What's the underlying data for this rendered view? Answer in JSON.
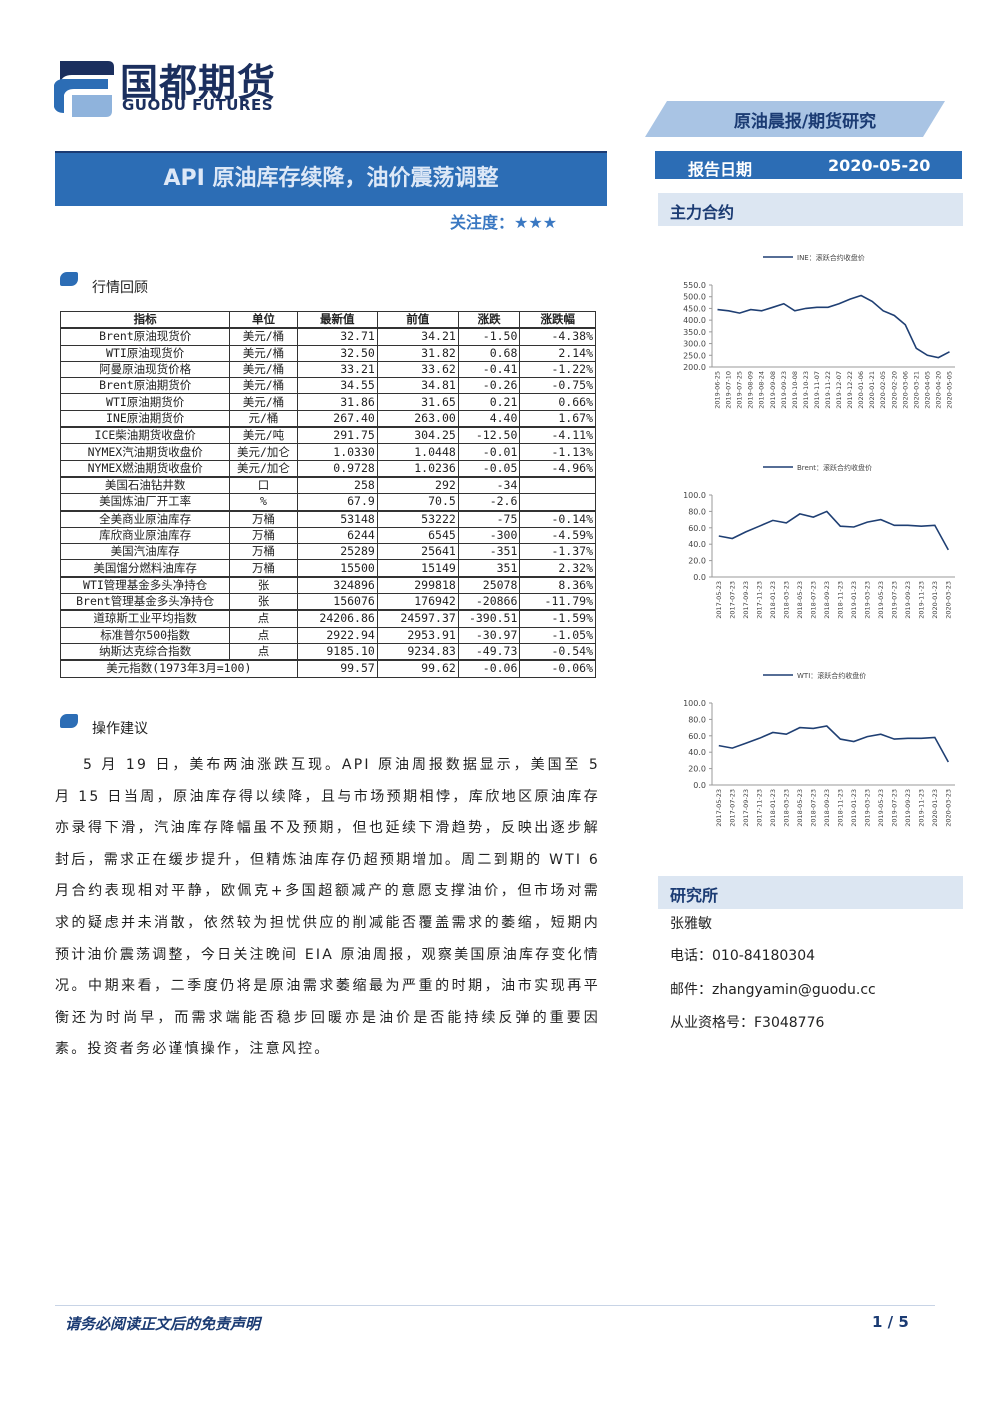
{
  "header": {
    "logo_cn": "国都期货",
    "logo_en": "GUODU FUTURES",
    "category": "原油晨报/期货研究",
    "title": "API 原油库存续降，油价震荡调整",
    "attention": "关注度：★★★",
    "date_label": "报告日期",
    "date": "2020-05-20"
  },
  "sections": {
    "market": "行情回顾",
    "advice": "操作建议",
    "contracts": "主力合约",
    "institute": "研究所"
  },
  "table": {
    "header": [
      "指标",
      "单位",
      "最新值",
      "前值",
      "涨跌",
      "涨跌幅"
    ],
    "groups": [
      [
        [
          "Brent原油现货价",
          "美元/桶",
          "32.71",
          "34.21",
          "-1.50",
          "-4.38%"
        ],
        [
          "WTI原油现货价",
          "美元/桶",
          "32.50",
          "31.82",
          "0.68",
          "2.14%"
        ],
        [
          "阿曼原油现货价格",
          "美元/桶",
          "33.21",
          "33.62",
          "-0.41",
          "-1.22%"
        ],
        [
          "Brent原油期货价",
          "美元/桶",
          "34.55",
          "34.81",
          "-0.26",
          "-0.75%"
        ],
        [
          "WTI原油期货价",
          "美元/桶",
          "31.86",
          "31.65",
          "0.21",
          "0.66%"
        ],
        [
          "INE原油期货价",
          "元/桶",
          "267.40",
          "263.00",
          "4.40",
          "1.67%"
        ]
      ],
      [
        [
          "ICE柴油期货收盘价",
          "美元/吨",
          "291.75",
          "304.25",
          "-12.50",
          "-4.11%"
        ],
        [
          "NYMEX汽油期货收盘价",
          "美元/加仑",
          "1.0330",
          "1.0448",
          "-0.01",
          "-1.13%"
        ],
        [
          "NYMEX燃油期货收盘价",
          "美元/加仑",
          "0.9728",
          "1.0236",
          "-0.05",
          "-4.96%"
        ]
      ],
      [
        [
          "美国石油钻井数",
          "口",
          "258",
          "292",
          "-34"
        ],
        [
          "美国炼油厂开工率",
          "%",
          "67.9",
          "70.5",
          "-2.6"
        ]
      ],
      [
        [
          "全美商业原油库存",
          "万桶",
          "53148",
          "53222",
          "-75",
          "-0.14%"
        ],
        [
          "库欣商业原油库存",
          "万桶",
          "6244",
          "6545",
          "-300",
          "-4.59%"
        ],
        [
          "美国汽油库存",
          "万桶",
          "25289",
          "25641",
          "-351",
          "-1.37%"
        ],
        [
          "美国馏分燃料油库存",
          "万桶",
          "15500",
          "15149",
          "351",
          "2.32%"
        ]
      ],
      [
        [
          "WTI管理基金多头净持仓",
          "张",
          "324896",
          "299818",
          "25078",
          "8.36%"
        ],
        [
          "Brent管理基金多头净持仓",
          "张",
          "156076",
          "176942",
          "-20866",
          "-11.79%"
        ]
      ],
      [
        [
          "道琼斯工业平均指数",
          "点",
          "24206.86",
          "24597.37",
          "-390.51",
          "-1.59%"
        ],
        [
          "标准普尔500指数",
          "点",
          "2922.94",
          "2953.91",
          "-30.97",
          "-1.05%"
        ],
        [
          "纳斯达克综合指数",
          "点",
          "9185.10",
          "9234.83",
          "-49.73",
          "-0.54%"
        ]
      ]
    ],
    "last_row": [
      "美元指数(1973年3月=100)",
      "99.57",
      "99.62",
      "-0.06",
      "-0.06%"
    ]
  },
  "advice_text": "5 月 19 日，美布两油涨跌互现。API 原油周报数据显示，美国至 5 月 15 日当周，原油库存得以续降，且与市场预期相悖，库欣地区原油库存亦录得下滑，汽油库存降幅虽不及预期，但也延续下滑趋势，反映出逐步解封后，需求正在缓步提升，但精炼油库存仍超预期增加。周二到期的 WTI 6 月合约表现相对平静，欧佩克+多国超额减产的意愿支撑油价，但市场对需求的疑虑并未消散，依然较为担忧供应的削减能否覆盖需求的萎缩，短期内预计油价震荡调整，今日关注晚间 EIA 原油周报，观察美国原油库存变化情况。中期来看，二季度仍将是原油需求萎缩最为严重的时期，油市实现再平衡还为时尚早，而需求端能否稳步回暖亦是油价是否能持续反弹的重要因素。投资者务必谨慎操作，注意风控。",
  "contact": {
    "name": "张雅敏",
    "phone": "电话：010-84180304",
    "email": "邮件：zhangyamin@guodu.cc",
    "license": "从业资格号：F3048776"
  },
  "footer": {
    "disclaimer": "请务必阅读正文后的免责声明",
    "page": "1 / 5"
  },
  "chart_data": [
    {
      "type": "line",
      "categories": [
        "2019-06-25",
        "2019-07-10",
        "2019-07-25",
        "2019-08-09",
        "2019-08-24",
        "2019-09-08",
        "2019-09-23",
        "2019-10-08",
        "2019-10-23",
        "2019-11-07",
        "2019-11-22",
        "2019-12-07",
        "2019-12-22",
        "2020-01-06",
        "2020-01-21",
        "2020-02-05",
        "2020-02-20",
        "2020-03-06",
        "2020-03-21",
        "2020-04-05",
        "2020-04-20",
        "2020-05-05"
      ],
      "series": [
        {
          "name": "INE：滚跃合约收盘价",
          "color": "#1f3f73",
          "values": [
            445,
            440,
            430,
            445,
            440,
            455,
            470,
            440,
            450,
            455,
            455,
            470,
            490,
            505,
            480,
            440,
            420,
            380,
            280,
            250,
            240,
            265
          ]
        }
      ],
      "ylim": [
        200,
        550
      ],
      "yticks": [
        {
          "value": 200,
          "label": "200.0"
        },
        {
          "value": 250,
          "label": "250.0"
        },
        {
          "value": 300,
          "label": "300.0"
        },
        {
          "value": 350,
          "label": "350.0"
        },
        {
          "value": 400,
          "label": "400.0"
        },
        {
          "value": 450,
          "label": "450.0"
        },
        {
          "value": 500,
          "label": "500.0"
        },
        {
          "value": 550,
          "label": "550.0"
        }
      ]
    },
    {
      "type": "line",
      "categories": [
        "2017-05-23",
        "2017-07-23",
        "2017-09-23",
        "2017-11-23",
        "2018-01-23",
        "2018-03-23",
        "2018-05-23",
        "2018-07-23",
        "2018-09-23",
        "2018-11-23",
        "2019-01-23",
        "2019-03-23",
        "2019-05-23",
        "2019-07-23",
        "2019-09-23",
        "2019-11-23",
        "2020-01-23",
        "2020-03-23"
      ],
      "series": [
        {
          "name": "Brent：滚跃合约收盘价",
          "color": "#1f3f73",
          "values": [
            50,
            47,
            55,
            62,
            69,
            66,
            77,
            73,
            80,
            62,
            61,
            67,
            70,
            63,
            63,
            62,
            63,
            33
          ]
        }
      ],
      "ylim": [
        0,
        100
      ],
      "yticks": [
        {
          "value": 0,
          "label": "0.0"
        },
        {
          "value": 20,
          "label": "20.0"
        },
        {
          "value": 40,
          "label": "40.0"
        },
        {
          "value": 60,
          "label": "60.0"
        },
        {
          "value": 80,
          "label": "80.0"
        },
        {
          "value": 100,
          "label": "100.0"
        }
      ]
    },
    {
      "type": "line",
      "categories": [
        "2017-05-23",
        "2017-07-23",
        "2017-09-23",
        "2017-11-23",
        "2018-01-23",
        "2018-03-23",
        "2018-05-23",
        "2018-07-23",
        "2018-09-23",
        "2018-11-23",
        "2019-01-23",
        "2019-03-23",
        "2019-05-23",
        "2019-07-23",
        "2019-09-23",
        "2019-11-23",
        "2020-01-23",
        "2020-03-23"
      ],
      "series": [
        {
          "name": "WTI：滚跃合约收盘价",
          "color": "#1f3f73",
          "values": [
            48,
            45,
            51,
            57,
            64,
            62,
            70,
            69,
            72,
            56,
            53,
            59,
            62,
            56,
            57,
            57,
            58,
            28
          ]
        }
      ],
      "ylim": [
        0,
        100
      ],
      "yticks": [
        {
          "value": 0,
          "label": "0.0"
        },
        {
          "value": 20,
          "label": "20.0"
        },
        {
          "value": 40,
          "label": "40.0"
        },
        {
          "value": 60,
          "label": "60.0"
        },
        {
          "value": 80,
          "label": "80.0"
        },
        {
          "value": 100,
          "label": "100.0"
        }
      ]
    }
  ]
}
